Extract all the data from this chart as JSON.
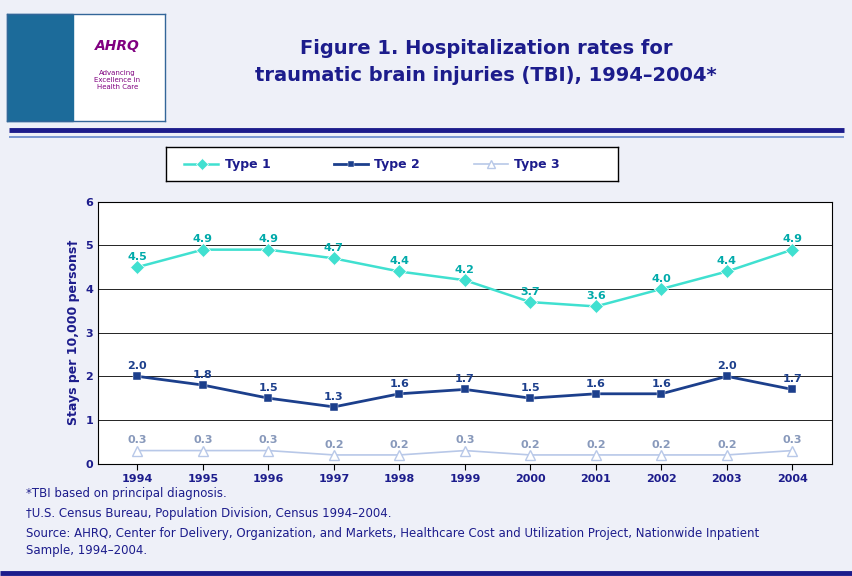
{
  "title_line1": "Figure 1. Hospitalization rates for",
  "title_line2": "traumatic brain injuries (TBI), 1994–2004*",
  "years": [
    1994,
    1995,
    1996,
    1997,
    1998,
    1999,
    2000,
    2001,
    2002,
    2003,
    2004
  ],
  "type1": [
    4.5,
    4.9,
    4.9,
    4.7,
    4.4,
    4.2,
    3.7,
    3.6,
    4.0,
    4.4,
    4.9
  ],
  "type2": [
    2.0,
    1.8,
    1.5,
    1.3,
    1.6,
    1.7,
    1.5,
    1.6,
    1.6,
    2.0,
    1.7
  ],
  "type3": [
    0.3,
    0.3,
    0.3,
    0.2,
    0.2,
    0.3,
    0.2,
    0.2,
    0.2,
    0.2,
    0.3
  ],
  "type1_color": "#40E0D0",
  "type2_color": "#1C3F8C",
  "type3_color": "#B8C8E8",
  "type1_annot_color": "#00AAAA",
  "type2_annot_color": "#1C3F8C",
  "type3_annot_color": "#8899BB",
  "ylabel": "Stays per 10,000 persons†",
  "ylim": [
    0,
    6
  ],
  "yticks": [
    0,
    1,
    2,
    3,
    4,
    5,
    6
  ],
  "background_color": "#EEF0F8",
  "plot_bg_color": "#FFFFFF",
  "title_color": "#1C1C8C",
  "border_color": "#1C1C8C",
  "separator_color_thick": "#1C1C8C",
  "separator_color_thin": "#6688CC",
  "footnote1": "*TBI based on principal diagnosis.",
  "footnote2": "†U.S. Census Bureau, Population Division, Census 1994–2004.",
  "footnote3": "Source: AHRQ, Center for Delivery, Organization, and Markets, Healthcare Cost and Utilization Project, Nationwide Inpatient",
  "footnote4": "Sample, 1994–2004.",
  "legend_labels": [
    "Type 1",
    "Type 2",
    "Type 3"
  ],
  "grid_color": "#000000",
  "label_fontsize": 8,
  "annotation_fontsize": 8,
  "title_fontsize": 14,
  "ylabel_fontsize": 9
}
